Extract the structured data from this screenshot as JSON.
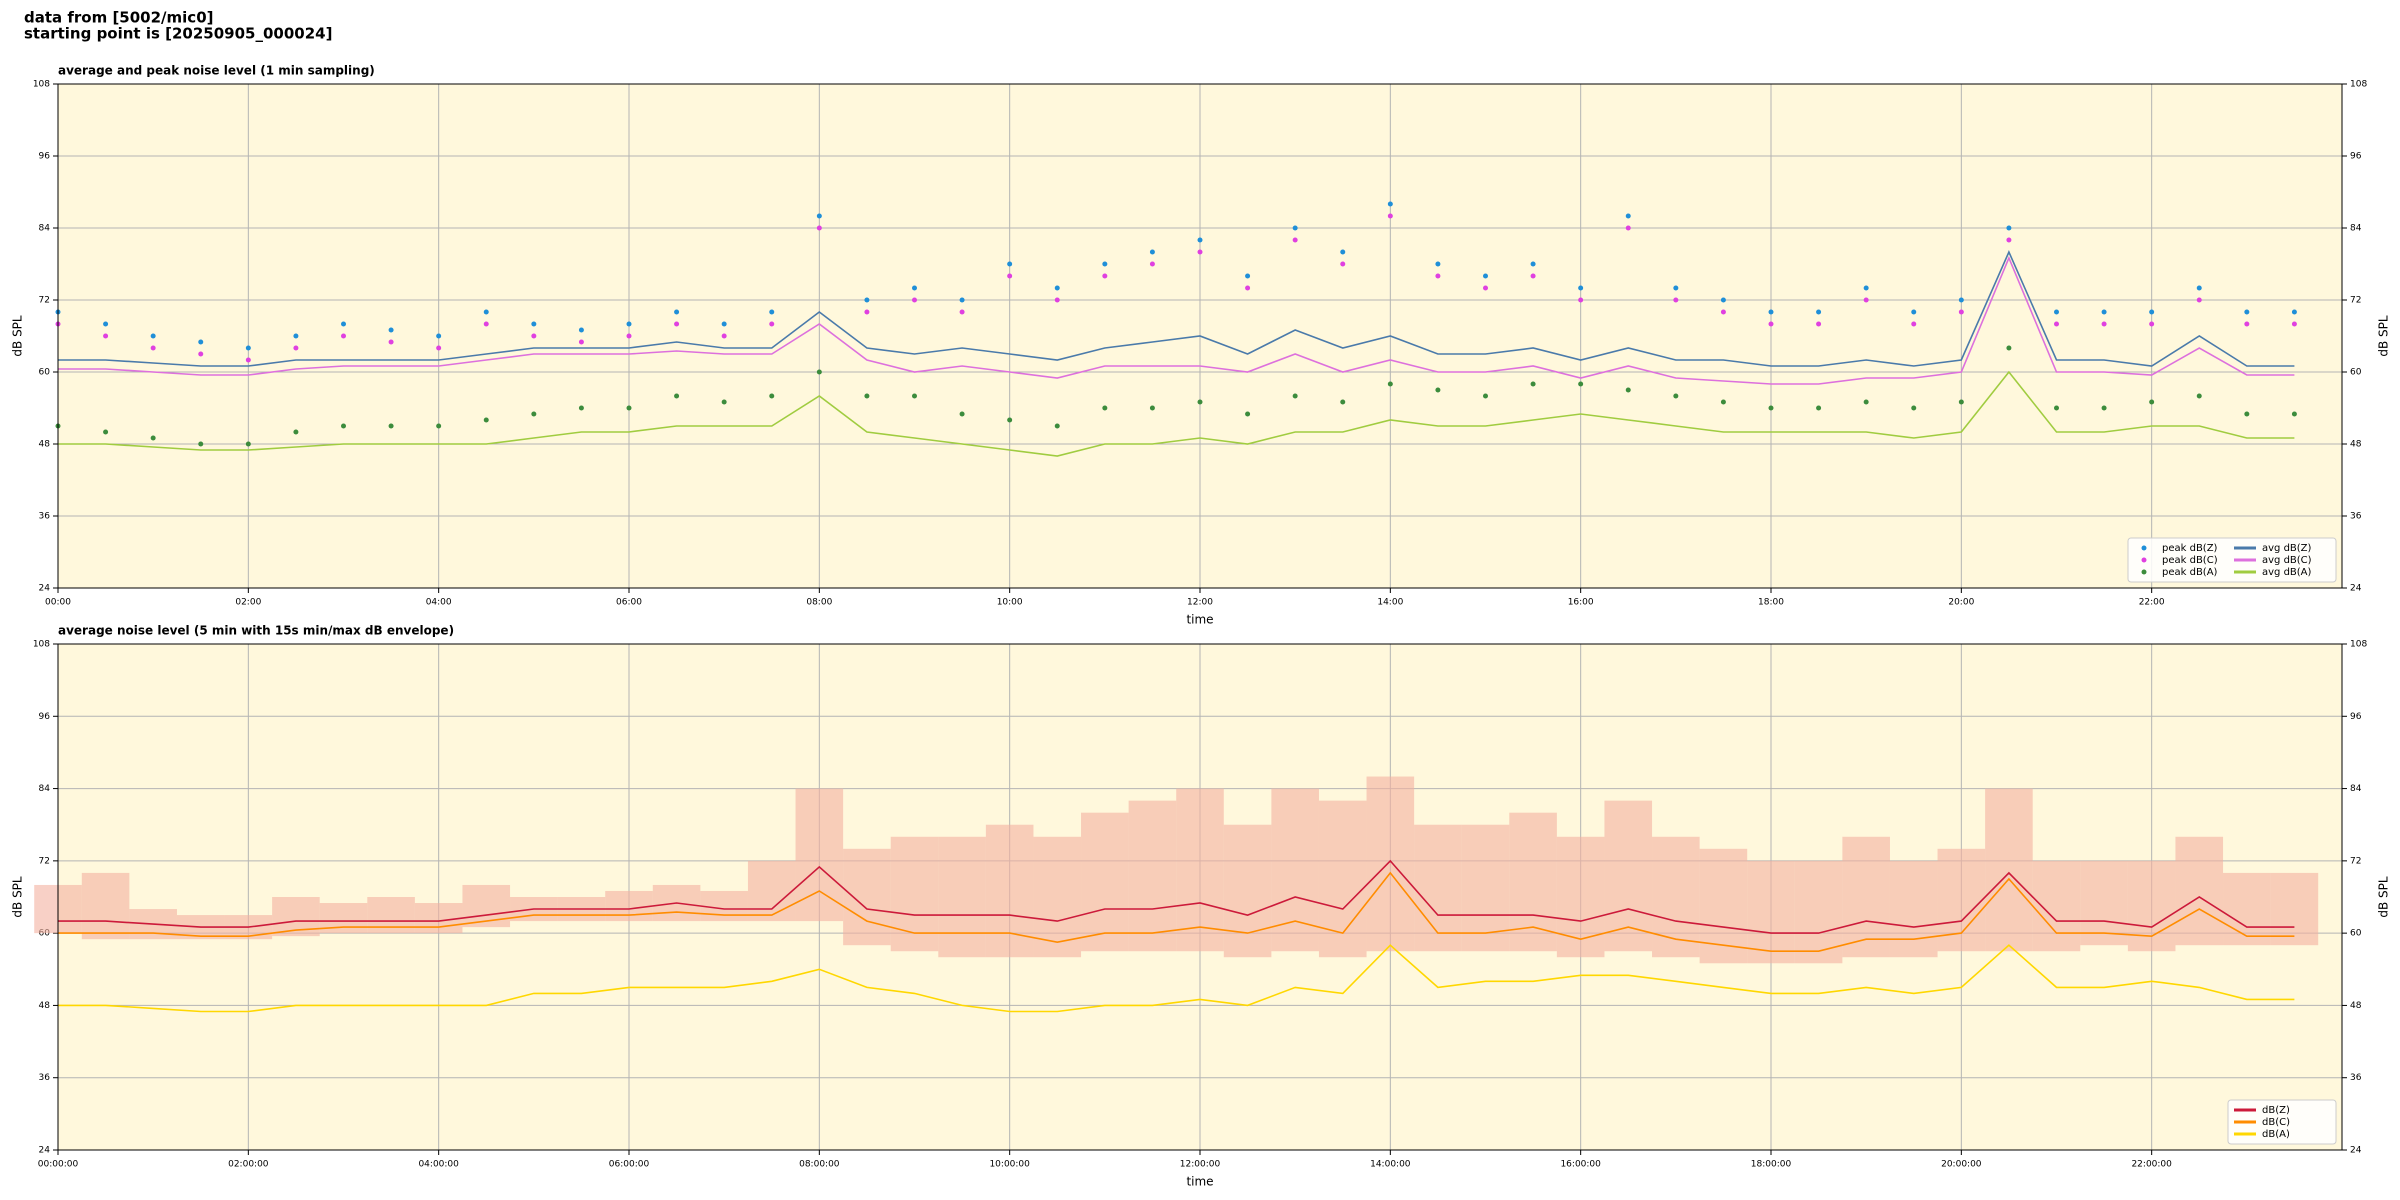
{
  "header": {
    "line1": "data from [5002/mic0]",
    "line2": "starting point is [20250905_000024]"
  },
  "chart_data": [
    {
      "type": "line",
      "title": "average and peak noise level (1 min sampling)",
      "xlabel": "time",
      "ylabel": "dB SPL",
      "y2label": "dB SPL",
      "x": [
        "00:00",
        "00:30",
        "01:00",
        "01:30",
        "02:00",
        "02:30",
        "03:00",
        "03:30",
        "04:00",
        "04:30",
        "05:00",
        "05:30",
        "06:00",
        "06:30",
        "07:00",
        "07:30",
        "08:00",
        "08:30",
        "09:00",
        "09:30",
        "10:00",
        "10:30",
        "11:00",
        "11:30",
        "12:00",
        "12:30",
        "13:00",
        "13:30",
        "14:00",
        "14:30",
        "15:00",
        "15:30",
        "16:00",
        "16:30",
        "17:00",
        "17:30",
        "18:00",
        "18:30",
        "19:00",
        "19:30",
        "20:00",
        "20:30",
        "21:00",
        "21:30",
        "22:00",
        "22:30",
        "23:00",
        "23:30"
      ],
      "xlim": [
        "00:00",
        "24:00"
      ],
      "xticks": [
        "00:00",
        "02:00",
        "04:00",
        "06:00",
        "08:00",
        "10:00",
        "12:00",
        "14:00",
        "16:00",
        "18:00",
        "20:00",
        "22:00"
      ],
      "ylim": [
        24,
        108
      ],
      "yticks": [
        24,
        36,
        48,
        60,
        72,
        84,
        96,
        108
      ],
      "y2lim": [
        24,
        108
      ],
      "y2ticks": [
        24,
        36,
        48,
        60,
        72,
        84,
        96,
        108
      ],
      "grid": true,
      "background": "#fff8dc",
      "legend": "lower right",
      "series": [
        {
          "name": "peak dB(Z)",
          "mark": "dot",
          "color": "#1f8fd8",
          "values": [
            70,
            68,
            66,
            65,
            64,
            66,
            68,
            67,
            66,
            70,
            68,
            67,
            68,
            70,
            68,
            70,
            86,
            72,
            74,
            72,
            78,
            74,
            78,
            80,
            82,
            76,
            84,
            80,
            88,
            78,
            76,
            78,
            74,
            86,
            74,
            72,
            70,
            70,
            74,
            70,
            72,
            84,
            70,
            70,
            70,
            74,
            70,
            70
          ]
        },
        {
          "name": "peak dB(C)",
          "mark": "dot",
          "color": "#e040e0",
          "values": [
            68,
            66,
            64,
            63,
            62,
            64,
            66,
            65,
            64,
            68,
            66,
            65,
            66,
            68,
            66,
            68,
            84,
            70,
            72,
            70,
            76,
            72,
            76,
            78,
            80,
            74,
            82,
            78,
            86,
            76,
            74,
            76,
            72,
            84,
            72,
            70,
            68,
            68,
            72,
            68,
            70,
            82,
            68,
            68,
            68,
            72,
            68,
            68
          ]
        },
        {
          "name": "peak dB(A)",
          "mark": "dot",
          "color": "#3c8c3c",
          "values": [
            51,
            50,
            49,
            48,
            48,
            50,
            51,
            51,
            51,
            52,
            53,
            54,
            54,
            56,
            55,
            56,
            60,
            56,
            56,
            53,
            52,
            51,
            54,
            54,
            55,
            53,
            56,
            55,
            58,
            57,
            56,
            58,
            58,
            57,
            56,
            55,
            54,
            54,
            55,
            54,
            55,
            64,
            54,
            54,
            55,
            56,
            53,
            53
          ]
        },
        {
          "name": "avg dB(Z)",
          "mark": "line",
          "color": "#4a7aaa",
          "values": [
            62,
            62,
            61.5,
            61,
            61,
            62,
            62,
            62,
            62,
            63,
            64,
            64,
            64,
            65,
            64,
            64,
            70,
            64,
            63,
            64,
            63,
            62,
            64,
            65,
            66,
            63,
            67,
            64,
            66,
            63,
            63,
            64,
            62,
            64,
            62,
            62,
            61,
            61,
            62,
            61,
            62,
            80,
            62,
            62,
            61,
            66,
            61,
            61
          ]
        },
        {
          "name": "avg dB(C)",
          "mark": "line",
          "color": "#dd70dd",
          "values": [
            60.5,
            60.5,
            60,
            59.5,
            59.5,
            60.5,
            61,
            61,
            61,
            62,
            63,
            63,
            63,
            63.5,
            63,
            63,
            68,
            62,
            60,
            61,
            60,
            59,
            61,
            61,
            61,
            60,
            63,
            60,
            62,
            60,
            60,
            61,
            59,
            61,
            59,
            58.5,
            58,
            58,
            59,
            59,
            60,
            79,
            60,
            60,
            59.5,
            64,
            59.5,
            59.5
          ]
        },
        {
          "name": "avg dB(A)",
          "mark": "line",
          "color": "#a0cc40",
          "values": [
            48,
            48,
            47.5,
            47,
            47,
            47.5,
            48,
            48,
            48,
            48,
            49,
            50,
            50,
            51,
            51,
            51,
            56,
            50,
            49,
            48,
            47,
            46,
            48,
            48,
            49,
            48,
            50,
            50,
            52,
            51,
            51,
            52,
            53,
            52,
            51,
            50,
            50,
            50,
            50,
            49,
            50,
            60,
            50,
            50,
            51,
            51,
            49,
            49
          ]
        }
      ]
    },
    {
      "type": "line",
      "title": "average noise level (5 min with 15s min/max dB envelope)",
      "xlabel": "time",
      "ylabel": "dB SPL",
      "y2label": "dB SPL",
      "x": [
        "00:00:00",
        "00:30:00",
        "01:00:00",
        "01:30:00",
        "02:00:00",
        "02:30:00",
        "03:00:00",
        "03:30:00",
        "04:00:00",
        "04:30:00",
        "05:00:00",
        "05:30:00",
        "06:00:00",
        "06:30:00",
        "07:00:00",
        "07:30:00",
        "08:00:00",
        "08:30:00",
        "09:00:00",
        "09:30:00",
        "10:00:00",
        "10:30:00",
        "11:00:00",
        "11:30:00",
        "12:00:00",
        "12:30:00",
        "13:00:00",
        "13:30:00",
        "14:00:00",
        "14:30:00",
        "15:00:00",
        "15:30:00",
        "16:00:00",
        "16:30:00",
        "17:00:00",
        "17:30:00",
        "18:00:00",
        "18:30:00",
        "19:00:00",
        "19:30:00",
        "20:00:00",
        "20:30:00",
        "21:00:00",
        "21:30:00",
        "22:00:00",
        "22:30:00",
        "23:00:00",
        "23:30:00"
      ],
      "xlim": [
        "00:00:00",
        "24:00:00"
      ],
      "xticks": [
        "00:00:00",
        "02:00:00",
        "04:00:00",
        "06:00:00",
        "08:00:00",
        "10:00:00",
        "12:00:00",
        "14:00:00",
        "16:00:00",
        "18:00:00",
        "20:00:00",
        "22:00:00"
      ],
      "ylim": [
        24,
        108
      ],
      "yticks": [
        24,
        36,
        48,
        60,
        72,
        84,
        96,
        108
      ],
      "y2lim": [
        24,
        108
      ],
      "y2ticks": [
        24,
        36,
        48,
        60,
        72,
        84,
        96,
        108
      ],
      "grid": true,
      "background": "#fff8dc",
      "legend": "lower right",
      "envelope": {
        "color": "#f4b0a0",
        "low": [
          60,
          59,
          59,
          59,
          59,
          59.5,
          60,
          60,
          60,
          61,
          62,
          62,
          62,
          62,
          62,
          62,
          62,
          58,
          57,
          56,
          56,
          56,
          57,
          57,
          57,
          56,
          57,
          56,
          57,
          57,
          57,
          57,
          56,
          57,
          56,
          55,
          55,
          55,
          56,
          56,
          57,
          57,
          57,
          58,
          57,
          58,
          58,
          58
        ],
        "high": [
          68,
          70,
          64,
          63,
          63,
          66,
          65,
          66,
          65,
          68,
          66,
          66,
          67,
          68,
          67,
          72,
          84,
          74,
          76,
          76,
          78,
          76,
          80,
          82,
          84,
          78,
          84,
          82,
          86,
          78,
          78,
          80,
          76,
          82,
          76,
          74,
          72,
          72,
          76,
          72,
          74,
          84,
          72,
          72,
          72,
          76,
          70,
          70
        ]
      },
      "series": [
        {
          "name": "dB(Z)",
          "mark": "line",
          "color": "#cc1a3a",
          "values": [
            62,
            62,
            61.5,
            61,
            61,
            62,
            62,
            62,
            62,
            63,
            64,
            64,
            64,
            65,
            64,
            64,
            71,
            64,
            63,
            63,
            63,
            62,
            64,
            64,
            65,
            63,
            66,
            64,
            72,
            63,
            63,
            63,
            62,
            64,
            62,
            61,
            60,
            60,
            62,
            61,
            62,
            70,
            62,
            62,
            61,
            66,
            61,
            61
          ]
        },
        {
          "name": "dB(C)",
          "mark": "line",
          "color": "#ff8c00",
          "values": [
            60,
            60,
            60,
            59.5,
            59.5,
            60.5,
            61,
            61,
            61,
            62,
            63,
            63,
            63,
            63.5,
            63,
            63,
            67,
            62,
            60,
            60,
            60,
            58.5,
            60,
            60,
            61,
            60,
            62,
            60,
            70,
            60,
            60,
            61,
            59,
            61,
            59,
            58,
            57,
            57,
            59,
            59,
            60,
            69,
            60,
            60,
            59.5,
            64,
            59.5,
            59.5
          ]
        },
        {
          "name": "dB(A)",
          "mark": "line",
          "color": "#ffd700",
          "values": [
            48,
            48,
            47.5,
            47,
            47,
            48,
            48,
            48,
            48,
            48,
            50,
            50,
            51,
            51,
            51,
            52,
            54,
            51,
            50,
            48,
            47,
            47,
            48,
            48,
            49,
            48,
            51,
            50,
            58,
            51,
            52,
            52,
            53,
            53,
            52,
            51,
            50,
            50,
            51,
            50,
            51,
            58,
            51,
            51,
            52,
            51,
            49,
            49
          ]
        }
      ]
    }
  ]
}
